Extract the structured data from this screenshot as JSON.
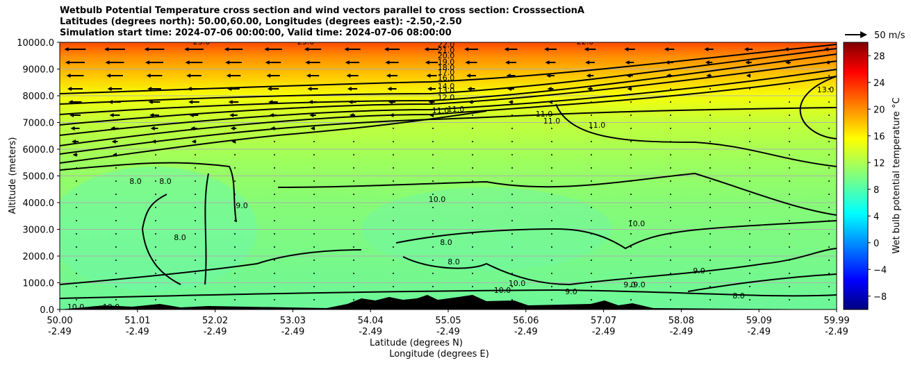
{
  "chart_data": {
    "type": "heatmap",
    "title_lines": [
      "Wetbulb Potential Temperature cross section and wind vectors parallel to cross section: CrosssectionA",
      "Latitudes (degrees north): 50.00,60.00, Longitudes (degrees east): -2.50,-2.50",
      "Simulation start time: 2024-07-06 00:00:00, Valid time: 2024-07-06 08:00:00"
    ],
    "ylabel": "Altitude (meters)",
    "xlabel_lat": "Latitude (degrees N)",
    "xlabel_lon": "Longitude (degrees E)",
    "ylim": [
      0,
      10000
    ],
    "y_ticks": [
      "0.0",
      "1000.0",
      "2000.0",
      "3000.0",
      "4000.0",
      "5000.0",
      "6000.0",
      "7000.0",
      "8000.0",
      "9000.0",
      "10000.0"
    ],
    "x_ticks_lat": [
      "50.00",
      "51.01",
      "52.02",
      "53.03",
      "54.04",
      "55.05",
      "56.06",
      "57.07",
      "58.08",
      "59.09",
      "59.99"
    ],
    "x_ticks_lon": [
      "-2.49",
      "-2.49",
      "-2.49",
      "-2.49",
      "-2.49",
      "-2.49",
      "-2.49",
      "-2.49",
      "-2.49",
      "-2.49",
      "-2.49"
    ],
    "grid": "horizontal",
    "colorbar": {
      "label": "Wet bulb potential temperature $^\\circ$C",
      "label_display": "Wet bulb potential temperature °C",
      "range": [
        -10,
        30
      ],
      "ticks": [
        "−8",
        "−4",
        "0",
        "4",
        "8",
        "12",
        "16",
        "20",
        "24",
        "28"
      ],
      "tick_values": [
        -8,
        -4,
        0,
        4,
        8,
        12,
        16,
        20,
        24,
        28
      ],
      "colormap": "jet"
    },
    "wind_key": "50 m/s",
    "contour_labels": [
      "22.0",
      "21.0",
      "20.0",
      "19.0",
      "18.0",
      "17.0",
      "16.0",
      "14.0",
      "13.0",
      "12.0",
      "11.0",
      "11.0",
      "11.0",
      "11.0",
      "11.0",
      "10.0",
      "10.0",
      "10.0",
      "10.0",
      "9.0",
      "9.0",
      "9.0",
      "9.0",
      "9.0",
      "8.0",
      "8.0",
      "8.0",
      "8.0",
      "8.0",
      "8.0",
      "23.0",
      "23.0",
      "22.0",
      "10.0",
      "10.0",
      "13.0"
    ]
  }
}
